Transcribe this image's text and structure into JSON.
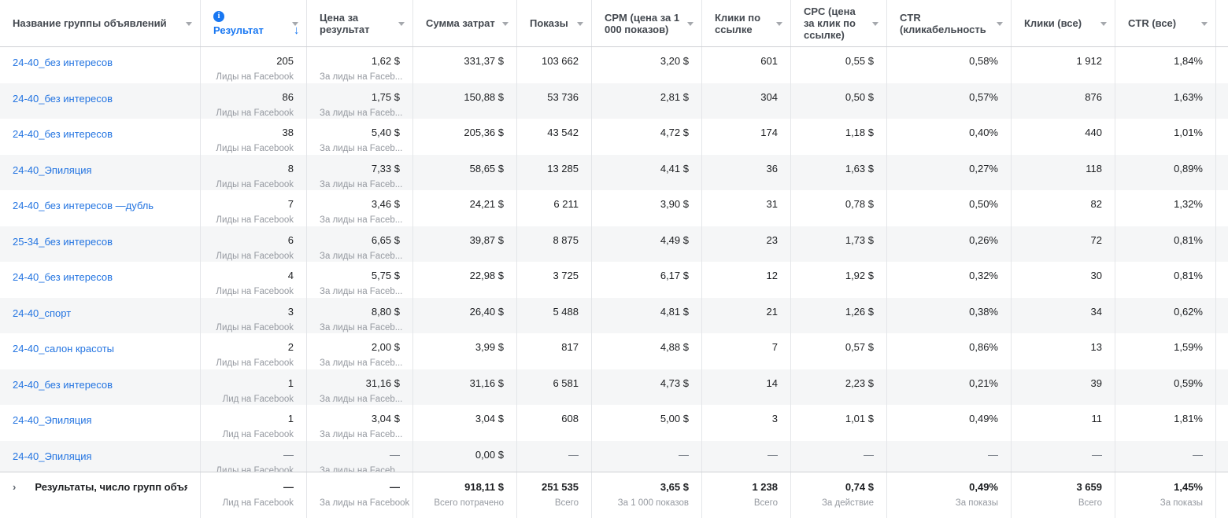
{
  "colors": {
    "accent_blue": "#1877f2",
    "link_blue": "#2374e1",
    "stripe_gray": "#f5f6f7",
    "border_gray": "#e4e6e9"
  },
  "header": {
    "columns": [
      {
        "id": "name",
        "label": "Название группы объявлений"
      },
      {
        "id": "result",
        "label": "Результат",
        "has_info_icon": true,
        "sort": "desc",
        "sort_arrow": "↓"
      },
      {
        "id": "cpr",
        "label": "Цена за результат"
      },
      {
        "id": "spend",
        "label": "Сумма затрат"
      },
      {
        "id": "impressions",
        "label": "Показы"
      },
      {
        "id": "cpm",
        "label": "CPM (цена за 1 000 показов)"
      },
      {
        "id": "link_clicks",
        "label": "Клики по ссылке"
      },
      {
        "id": "cpc",
        "label": "CPC (цена за клик по ссылке)"
      },
      {
        "id": "ctr",
        "label": "CTR (кликабельность"
      },
      {
        "id": "clicks_all",
        "label": "Клики (все)"
      },
      {
        "id": "ctr_all",
        "label": "CTR (все)"
      }
    ]
  },
  "rows": [
    {
      "name": "24-40_без интересов",
      "result": "205",
      "result_sub": "Лиды на Facebook",
      "cpr": "1,62 $",
      "cpr_sub": "За лиды на Faceb...",
      "spend": "331,37 $",
      "impressions": "103 662",
      "cpm": "3,20 $",
      "link_clicks": "601",
      "cpc": "0,55 $",
      "ctr": "0,58%",
      "clicks_all": "1 912",
      "ctr_all": "1,84%"
    },
    {
      "name": "24-40_без интересов",
      "result": "86",
      "result_sub": "Лиды на Facebook",
      "cpr": "1,75 $",
      "cpr_sub": "За лиды на Faceb...",
      "spend": "150,88 $",
      "impressions": "53 736",
      "cpm": "2,81 $",
      "link_clicks": "304",
      "cpc": "0,50 $",
      "ctr": "0,57%",
      "clicks_all": "876",
      "ctr_all": "1,63%"
    },
    {
      "name": "24-40_без интересов",
      "result": "38",
      "result_sub": "Лиды на Facebook",
      "cpr": "5,40 $",
      "cpr_sub": "За лиды на Faceb...",
      "spend": "205,36 $",
      "impressions": "43 542",
      "cpm": "4,72 $",
      "link_clicks": "174",
      "cpc": "1,18 $",
      "ctr": "0,40%",
      "clicks_all": "440",
      "ctr_all": "1,01%"
    },
    {
      "name": "24-40_Эпиляция",
      "result": "8",
      "result_sub": "Лиды на Facebook",
      "cpr": "7,33 $",
      "cpr_sub": "За лиды на Faceb...",
      "spend": "58,65 $",
      "impressions": "13 285",
      "cpm": "4,41 $",
      "link_clicks": "36",
      "cpc": "1,63 $",
      "ctr": "0,27%",
      "clicks_all": "118",
      "ctr_all": "0,89%"
    },
    {
      "name": "24-40_без интересов —дубль",
      "result": "7",
      "result_sub": "Лиды на Facebook",
      "cpr": "3,46 $",
      "cpr_sub": "За лиды на Faceb...",
      "spend": "24,21 $",
      "impressions": "6 211",
      "cpm": "3,90 $",
      "link_clicks": "31",
      "cpc": "0,78 $",
      "ctr": "0,50%",
      "clicks_all": "82",
      "ctr_all": "1,32%"
    },
    {
      "name": "25-34_без интересов",
      "result": "6",
      "result_sub": "Лиды на Facebook",
      "cpr": "6,65 $",
      "cpr_sub": "За лиды на Faceb...",
      "spend": "39,87 $",
      "impressions": "8 875",
      "cpm": "4,49 $",
      "link_clicks": "23",
      "cpc": "1,73 $",
      "ctr": "0,26%",
      "clicks_all": "72",
      "ctr_all": "0,81%"
    },
    {
      "name": "24-40_без интересов",
      "result": "4",
      "result_sub": "Лиды на Facebook",
      "cpr": "5,75 $",
      "cpr_sub": "За лиды на Faceb...",
      "spend": "22,98 $",
      "impressions": "3 725",
      "cpm": "6,17 $",
      "link_clicks": "12",
      "cpc": "1,92 $",
      "ctr": "0,32%",
      "clicks_all": "30",
      "ctr_all": "0,81%"
    },
    {
      "name": "24-40_спорт",
      "result": "3",
      "result_sub": "Лиды на Facebook",
      "cpr": "8,80 $",
      "cpr_sub": "За лиды на Faceb...",
      "spend": "26,40 $",
      "impressions": "5 488",
      "cpm": "4,81 $",
      "link_clicks": "21",
      "cpc": "1,26 $",
      "ctr": "0,38%",
      "clicks_all": "34",
      "ctr_all": "0,62%"
    },
    {
      "name": "24-40_салон красоты",
      "result": "2",
      "result_sub": "Лиды на Facebook",
      "cpr": "2,00 $",
      "cpr_sub": "За лиды на Faceb...",
      "spend": "3,99 $",
      "impressions": "817",
      "cpm": "4,88 $",
      "link_clicks": "7",
      "cpc": "0,57 $",
      "ctr": "0,86%",
      "clicks_all": "13",
      "ctr_all": "1,59%"
    },
    {
      "name": "24-40_без интересов",
      "result": "1",
      "result_sub": "Лид на Facebook",
      "cpr": "31,16 $",
      "cpr_sub": "За лиды на Faceb...",
      "spend": "31,16 $",
      "impressions": "6 581",
      "cpm": "4,73 $",
      "link_clicks": "14",
      "cpc": "2,23 $",
      "ctr": "0,21%",
      "clicks_all": "39",
      "ctr_all": "0,59%"
    },
    {
      "name": "24-40_Эпиляция",
      "result": "1",
      "result_sub": "Лид на Facebook",
      "cpr": "3,04 $",
      "cpr_sub": "За лиды на Faceb...",
      "spend": "3,04 $",
      "impressions": "608",
      "cpm": "5,00 $",
      "link_clicks": "3",
      "cpc": "1,01 $",
      "ctr": "0,49%",
      "clicks_all": "11",
      "ctr_all": "1,81%"
    },
    {
      "name": "24-40_Эпиляция",
      "result": "—",
      "result_sub": "Лиды на Facebook",
      "cpr": "—",
      "cpr_sub": "За лиды на Faceb...",
      "spend": "0,00 $",
      "impressions": "—",
      "cpm": "—",
      "link_clicks": "—",
      "cpc": "—",
      "ctr": "—",
      "clicks_all": "—",
      "ctr_all": "—"
    }
  ],
  "footer": {
    "expand_chevron": "›",
    "label": "Результаты, число групп объявлений",
    "result": "—",
    "result_sub": "Лид на Facebook",
    "cpr": "—",
    "cpr_sub": "За лиды на Facebook",
    "spend": "918,11 $",
    "spend_sub": "Всего потрачено",
    "impressions": "251 535",
    "impressions_sub": "Всего",
    "cpm": "3,65 $",
    "cpm_sub": "За 1 000 показов",
    "link_clicks": "1 238",
    "link_clicks_sub": "Всего",
    "cpc": "0,74 $",
    "cpc_sub": "За действие",
    "ctr": "0,49%",
    "ctr_sub": "За показы",
    "clicks_all": "3 659",
    "clicks_all_sub": "Всего",
    "ctr_all": "1,45%",
    "ctr_all_sub": "За показы"
  }
}
